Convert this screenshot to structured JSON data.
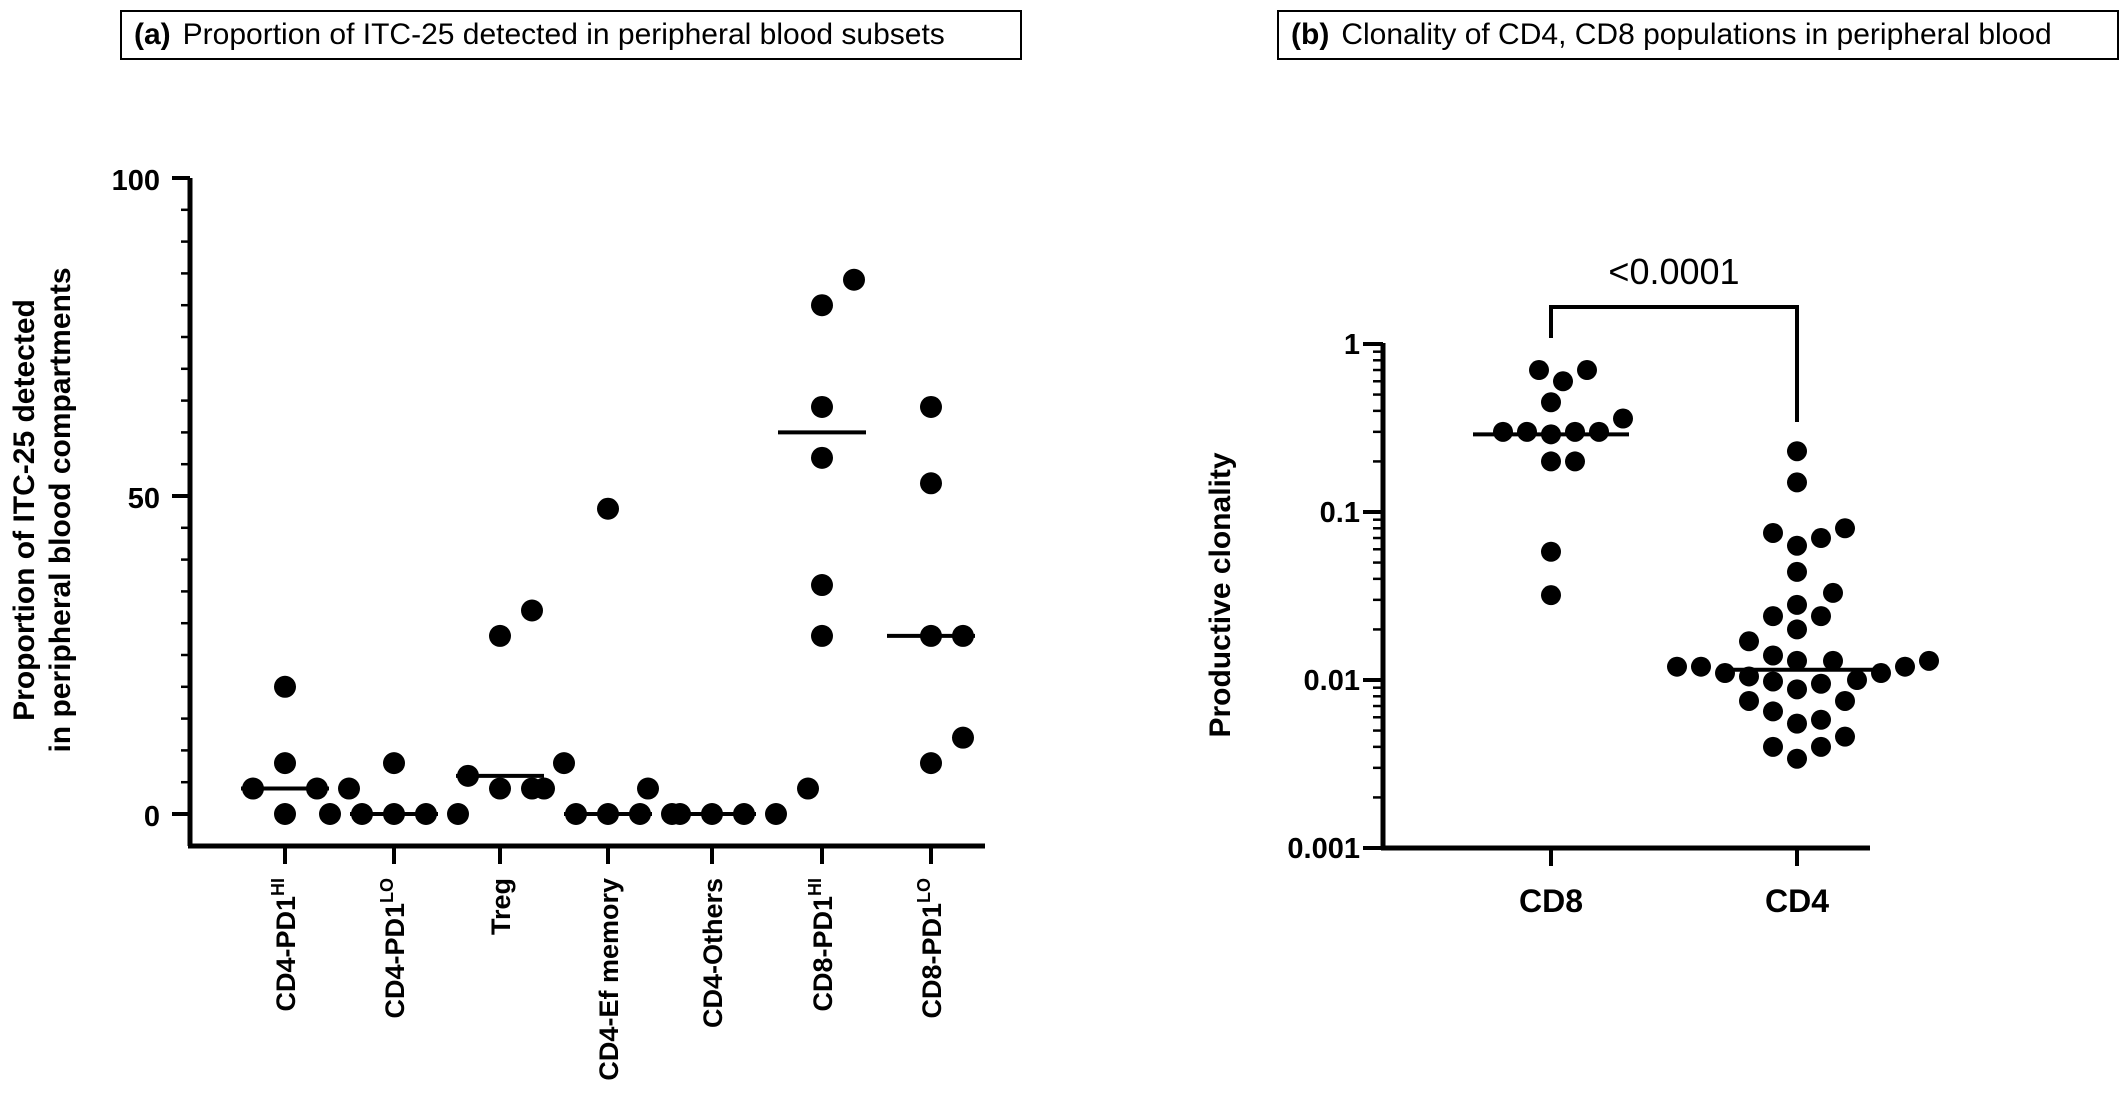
{
  "panel_a": {
    "tag": "(a)",
    "title": "Proportion of ITC-25 detected in peripheral blood subsets",
    "y_label_line1": "Proportion of ITC-25 detected",
    "y_label_line2": "in peripheral blood compartments",
    "y_ticks": [
      "0",
      "50",
      "100"
    ]
  },
  "panel_b": {
    "tag": "(b)",
    "title": "Clonality of CD4, CD8 populations in peripheral blood",
    "y_label": "Productive clonality",
    "y_ticks": [
      "0.001",
      "0.01",
      "0.1",
      "1"
    ],
    "pvalue": "<0.0001"
  },
  "chart_data": [
    {
      "type": "scatter",
      "title": "Proportion of ITC-25 detected in peripheral blood subsets",
      "ylabel": "Proportion of ITC-25 detected in peripheral blood compartments",
      "ylim": [
        0,
        100
      ],
      "categories": [
        {
          "base": "CD4-PD1",
          "sup": "HI"
        },
        {
          "base": "CD4-PD1",
          "sup": "LO"
        },
        {
          "base": "Treg",
          "sup": ""
        },
        {
          "base": "CD4-Ef memory",
          "sup": ""
        },
        {
          "base": "CD4-Others",
          "sup": ""
        },
        {
          "base": "CD8-PD1",
          "sup": "HI"
        },
        {
          "base": "CD8-PD1",
          "sup": "LO"
        }
      ],
      "points": [
        [
          20,
          8,
          4,
          4,
          4,
          0
        ],
        [
          8,
          0,
          0,
          0,
          0,
          0
        ],
        [
          32,
          28,
          8,
          6,
          4,
          4
        ],
        [
          48,
          4,
          0,
          0,
          0,
          0
        ],
        [
          4,
          4,
          0,
          0,
          0,
          0
        ],
        [
          84,
          80,
          64,
          56,
          36,
          28
        ],
        [
          64,
          52,
          28,
          28,
          12,
          8
        ]
      ],
      "medians": [
        4,
        0,
        6,
        0,
        0,
        60,
        28
      ],
      "grid": false
    },
    {
      "type": "scatter",
      "title": "Clonality of CD4, CD8 populations in peripheral blood",
      "ylabel": "Productive clonality",
      "yscale": "log",
      "ylim": [
        0.001,
        1
      ],
      "categories": [
        "CD8",
        "CD4"
      ],
      "points": [
        [
          0.7,
          0.7,
          0.6,
          0.45,
          0.36,
          0.3,
          0.3,
          0.3,
          0.3,
          0.29,
          0.2,
          0.2,
          0.058,
          0.032
        ],
        [
          0.23,
          0.15,
          0.08,
          0.075,
          0.07,
          0.063,
          0.044,
          0.033,
          0.028,
          0.024,
          0.024,
          0.02,
          0.017,
          0.014,
          0.013,
          0.013,
          0.013,
          0.012,
          0.012,
          0.012,
          0.011,
          0.011,
          0.0105,
          0.01,
          0.0098,
          0.0095,
          0.0088,
          0.0075,
          0.0075,
          0.0065,
          0.0058,
          0.0055,
          0.0046,
          0.004,
          0.004,
          0.0034
        ]
      ],
      "medians": [
        0.29,
        0.0115
      ],
      "annotation": "<0.0001",
      "grid": false
    }
  ]
}
